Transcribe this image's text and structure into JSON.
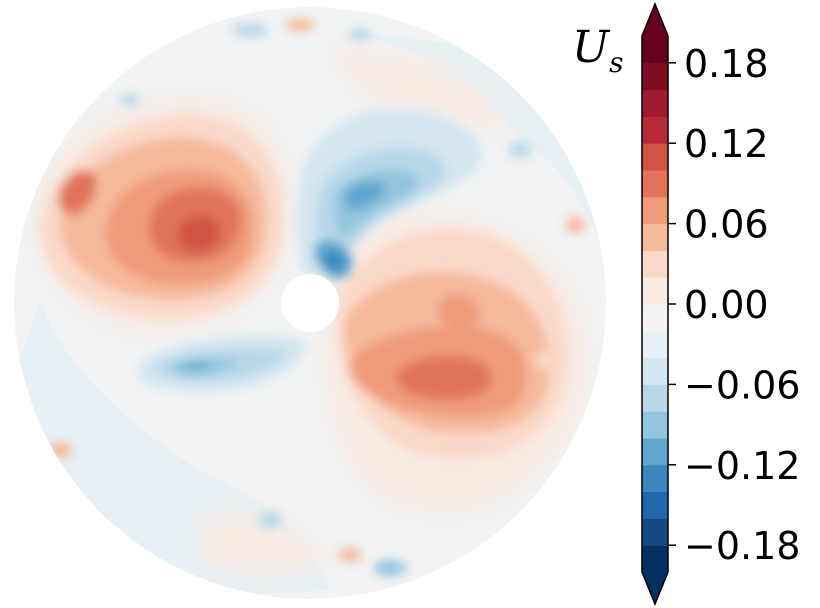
{
  "chart_data": {
    "type": "heatmap",
    "plot_kind": "filled contour on annular disk",
    "colormap": "RdBu_r (diverging, blue = negative, red = positive)",
    "colorbar": {
      "title": "U",
      "title_subscript": "s",
      "orientation": "vertical",
      "placement": "right",
      "extend": "both",
      "range": [
        -0.2,
        0.2
      ],
      "level_step": 0.02,
      "ticks": [
        -0.18,
        -0.12,
        -0.06,
        0.0,
        0.06,
        0.12,
        0.18
      ],
      "tick_labels": [
        "−0.18",
        "−0.12",
        "−0.06",
        "0.00",
        "0.06",
        "0.12",
        "0.18"
      ],
      "colors": [
        "#053061",
        "#134b87",
        "#2166ac",
        "#3a87bd",
        "#62a7cf",
        "#93c5de",
        "#b8d8e9",
        "#d4e6f0",
        "#e7f0f5",
        "#f1f3f4",
        "#f8ebe4",
        "#fad9c9",
        "#f5b99c",
        "#ef9b7a",
        "#e0735a",
        "#d15443",
        "#b8293a",
        "#a11a2f",
        "#7f0e25",
        "#67001f"
      ]
    },
    "grid": false,
    "axes_visible": false,
    "features": [
      {
        "sign": "positive",
        "region": "upper-left lobe",
        "peak_value": 0.14
      },
      {
        "sign": "positive",
        "region": "lower-right lobe",
        "peak_value": 0.1
      },
      {
        "sign": "negative",
        "region": "upper-center arm",
        "peak_value": -0.1
      },
      {
        "sign": "negative",
        "region": "lower-left arm",
        "peak_value": -0.08
      }
    ]
  }
}
